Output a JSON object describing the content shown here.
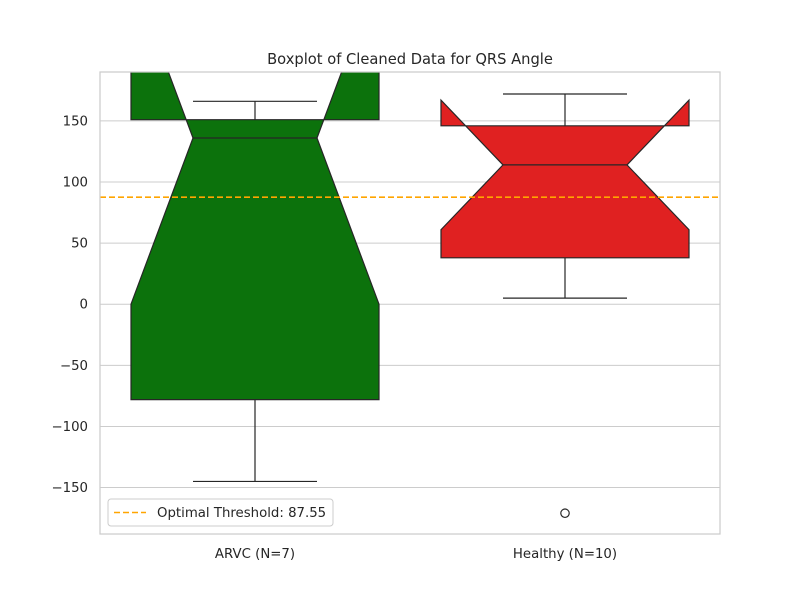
{
  "chart_data": {
    "type": "box",
    "title": "Boxplot of Cleaned Data for QRS Angle",
    "xlabel": "",
    "ylabel": "",
    "ylim": [
      -188,
      190
    ],
    "yticks": [
      -150,
      -100,
      -50,
      0,
      50,
      100,
      150
    ],
    "ytick_labels": [
      "−150",
      "−100",
      "−50",
      "0",
      "50",
      "100",
      "150"
    ],
    "notched": true,
    "grid": "horizontal",
    "categories": [
      "ARVC (N=7)",
      "Healthy (N=10)"
    ],
    "boxes": [
      {
        "label": "ARVC (N=7)",
        "color": "#0c720c",
        "whisker_low": -145,
        "q1": -78,
        "median": 136,
        "q3": 151,
        "whisker_high": 166,
        "notch_low": 0,
        "notch_high": 272,
        "outliers": []
      },
      {
        "label": "Healthy (N=10)",
        "color": "#e02121",
        "whisker_low": 5,
        "q1": 38,
        "median": 114,
        "q3": 146,
        "whisker_high": 172,
        "notch_low": 61,
        "notch_high": 167,
        "outliers": [
          -171
        ]
      }
    ],
    "threshold": {
      "value": 87.55,
      "color": "#ffa500",
      "label": "Optimal Threshold: 87.55"
    },
    "legend_position": "lower-left"
  }
}
